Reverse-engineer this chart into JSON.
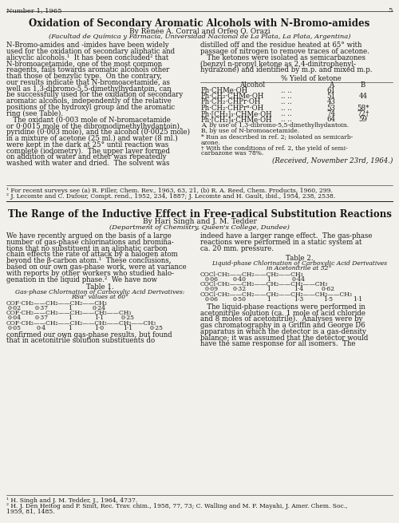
{
  "page_number": "5",
  "header_left": "Number 1, 1965",
  "title": "Oxidation of Secondary Aromatic Alcohols with N-Bromo-amides",
  "byline": "By Renée A. Corral and Orfeo O. Orazi",
  "institution": "(Facultad de Química y Farmacia, Universidad Nacional de La Plata, La Plata, Argentina)",
  "left_col_lines": [
    "N-Bromo-amides and -imides have been widely",
    "used for the oxidation of secondary aliphatic and",
    "alicyclic alcohols.¹  It has been concluded² that",
    "N-bromoacetamide, one of the most common",
    "reagents, fails towards aromatic alcohols other",
    "than those of benzylic type.  On the contrary,",
    "our results indicate that N-bromoacetamide, as",
    "well as 1,3-dibromo-5,5-dimethylhydantoin, can",
    "be successfully used for the oxidation of secondary",
    "aromatic alcohols, independently of the relative",
    "positions of the hydroxyl group and the aromatic",
    "ring (see Table).",
    "   The oxidant (0·003 mole of N-bromacetamide",
    "or 0·0015 mole of the dibromodimethylhydantoin),",
    "pyridine (0·003 mole), and the alcohol (0·0025 mole)",
    "in a mixture of acetone (25 ml.) and water (8 ml.)",
    "were kept in the dark at 25° until reaction was",
    "complete (iodometry).  The upper layer formed",
    "on addition of water and ether was repeatedly",
    "washed with water and dried.  The solvent was"
  ],
  "right_top_lines": [
    "distilled off and the residue heated at 65° with",
    "passage of nitrogen to remove traces of acetone.",
    "   The ketones were isolated as semicarbazones",
    "(benzyl n-propyl ketone as 2,4-dinitrophenyl-",
    "hydrazone) and identified by m.p. and mixed m.p."
  ],
  "table_yield_header": "% Yield of ketone",
  "table_alcohol_header": "Alcohol",
  "table_col_A": "A",
  "table_col_B": "B",
  "table_rows": [
    {
      "alcohol": "Ph·CHMe·OH",
      "A": "61",
      "B": ""
    },
    {
      "alcohol": "Ph·CH₂·CHMe·OH",
      "A": "51",
      "B": "44"
    },
    {
      "alcohol": "Ph·CH₂·CHPr·OH",
      "A": "43",
      "B": ""
    },
    {
      "alcohol": "Ph·CH₂·CHPrⁿ·OH",
      "A": "53",
      "B": "58*"
    },
    {
      "alcohol": "Ph·[CH₂]₃·CHMe·OH",
      "A": "74",
      "B": "72†"
    },
    {
      "alcohol": "Ph·[CH₂]₄·CHMe·OH",
      "A": "64",
      "B": "59"
    }
  ],
  "fn_A": "A, by use of 1,3-dibromo-5,5-dimethylhydantoin.",
  "fn_B": "B, by use of N-bromoacetamide.",
  "fn_star": "* Run as described in ref. 2; isolated as semicarb-",
  "fn_star2": "azone.",
  "fn_dag": "† With the conditions of ref. 2, the yield of semi-",
  "fn_dag2": "carbazone was 78%.",
  "received": "(Received, November 23rd, 1964.)",
  "art1_fn1": "¹ For recent surveys see (a) R. Filler, Chem. Rev., 1963, 63, 21, (b) R. A. Reed, Chem. Products, 1960, 299.",
  "art1_fn2": "² J. Lecomte and C. Dufour, Compt. rend., 1952, 234, 1887; J. Lecomte and H. Gault, ibid., 1954, 238, 2538.",
  "art2_title": "The Range of the Inductive Effect in Free-radical Substitution Reactions",
  "art2_byline": "By Hari Singh and J. M. Tedder",
  "art2_institution": "(Department of Chemistry, Queen's College, Dundee)",
  "art2_left_lines": [
    "We have recently argued on the basis of a large",
    "number of gas-phase chlorinations and bromina-",
    "tions that no substituent in an aliphatic carbon",
    "chain effects the rate of attack by a halogen atom",
    "beyond the β-carbon atom.¹  These conclusions,",
    "based on our own gas-phase work, were at variance",
    "with reports by other workers who studied halo-",
    "genation in the liquid phase.²  We have now"
  ],
  "t1_title": "Table 1.",
  "t1_sub1": "Gas-phase Chlorination of Carboxylic Acid Derivatives:",
  "t1_sub2": "RSα² values at 60°",
  "t1_rows": [
    {
      "formula": "COF·CH₂——CH₂——CH₂——CH₃",
      "vals": [
        "0·02",
        "0·37",
        "1",
        "0·24"
      ],
      "vpos": [
        18,
        52,
        88,
        124
      ]
    },
    {
      "formula": "COF·CH₂——CH₂——CH₂——CH₂——CH₃",
      "vals": [
        "0·04",
        "0·37",
        "1",
        "1·1",
        "0·25"
      ],
      "vpos": [
        18,
        52,
        88,
        124,
        160
      ]
    },
    {
      "formula": "COF·CH₂——CH₂——CH₂——CH₂——CH₂——CH₃",
      "vals": [
        "0·05",
        "0·4",
        "1",
        "1·0",
        "1·1",
        "0·25"
      ],
      "vpos": [
        18,
        52,
        88,
        124,
        160,
        196
      ]
    }
  ],
  "t1_confirmed1": "confirmed our own gas-phase results, but found",
  "t1_confirmed2": "that in acetonitrile solution substituents do",
  "art2_right_lines": [
    "indeed have a larger range effect.  The gas-phase",
    "reactions were performed in a static system at",
    "ca. 20 mm. pressure."
  ],
  "t2_title": "Table 2.",
  "t2_sub1": "Liquid-phase Chlorination of Carboxylic Acid Derivatives",
  "t2_sub2": "in Acetonitrile at 52°",
  "t2_rows": [
    {
      "formula": "COCl·CH₂——CH₂——CH₂——CH₃",
      "vals": [
        "0·06",
        "0·40",
        "1",
        "0·44"
      ],
      "vpos": [
        265,
        300,
        337,
        374
      ]
    },
    {
      "formula": "COCl·CH₂——CH₂——CH₂——CH₂——CH₃",
      "vals": [
        "0·09",
        "0·32",
        "1",
        "1·4",
        "0·62"
      ],
      "vpos": [
        265,
        300,
        337,
        374,
        411
      ]
    },
    {
      "formula": "COCl·CH₂——CH₂——CH₂——CH₂——CH₂——CH₃",
      "vals": [
        "0·06",
        "0·50",
        "1",
        "1·3",
        "1·5",
        "1·1"
      ],
      "vpos": [
        265,
        300,
        337,
        374,
        411,
        448
      ]
    }
  ],
  "art2_liquid_lines": [
    "   The liquid-phase reactions were performed in",
    "acetonitrile solution (ca. 1 mole of acid chloride",
    "and 8 moles of acetonitrile).  Analyses were by",
    "gas chromatography in a Griffin and George D6",
    "apparatus in which the detector is a gas-density",
    "balance; it was assumed that the detector would",
    "have the same response for all isomers.  The"
  ],
  "art2_fn1": "¹ H. Singh and J. M. Tedder, J., 1964, 4737.",
  "art2_fn2": "² H. J. Den Heitog and P. Smit, Rec. Trav. chim., 1958, 77, 73; C. Walling and M. F. Mayahi, J. Amer. Chem. Soc.,",
  "art2_fn3": "1959, 81, 1485.",
  "bg": "#f2f0eb",
  "fg": "#1a1a18"
}
